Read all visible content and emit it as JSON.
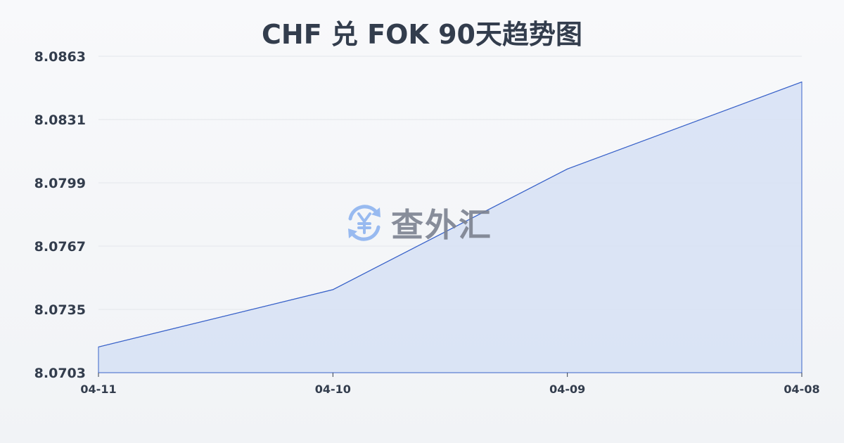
{
  "chart_data": {
    "type": "area",
    "title": "CHF 兑 FOK 90天趋势图",
    "categories": [
      "04-11",
      "04-10",
      "04-09",
      "04-08"
    ],
    "values": [
      8.0716,
      8.0745,
      8.0806,
      8.085
    ],
    "yticks": [
      "8.0703",
      "8.0735",
      "8.0767",
      "8.0799",
      "8.0831",
      "8.0863"
    ],
    "ylim": [
      8.0703,
      8.0863
    ],
    "grid": true,
    "line_color": "#3a63c9",
    "fill_color": "#d6e0f5"
  },
  "watermark": {
    "text": "查外汇",
    "icon": "yen-exchange-icon",
    "icon_color": "#8fb4f0"
  }
}
